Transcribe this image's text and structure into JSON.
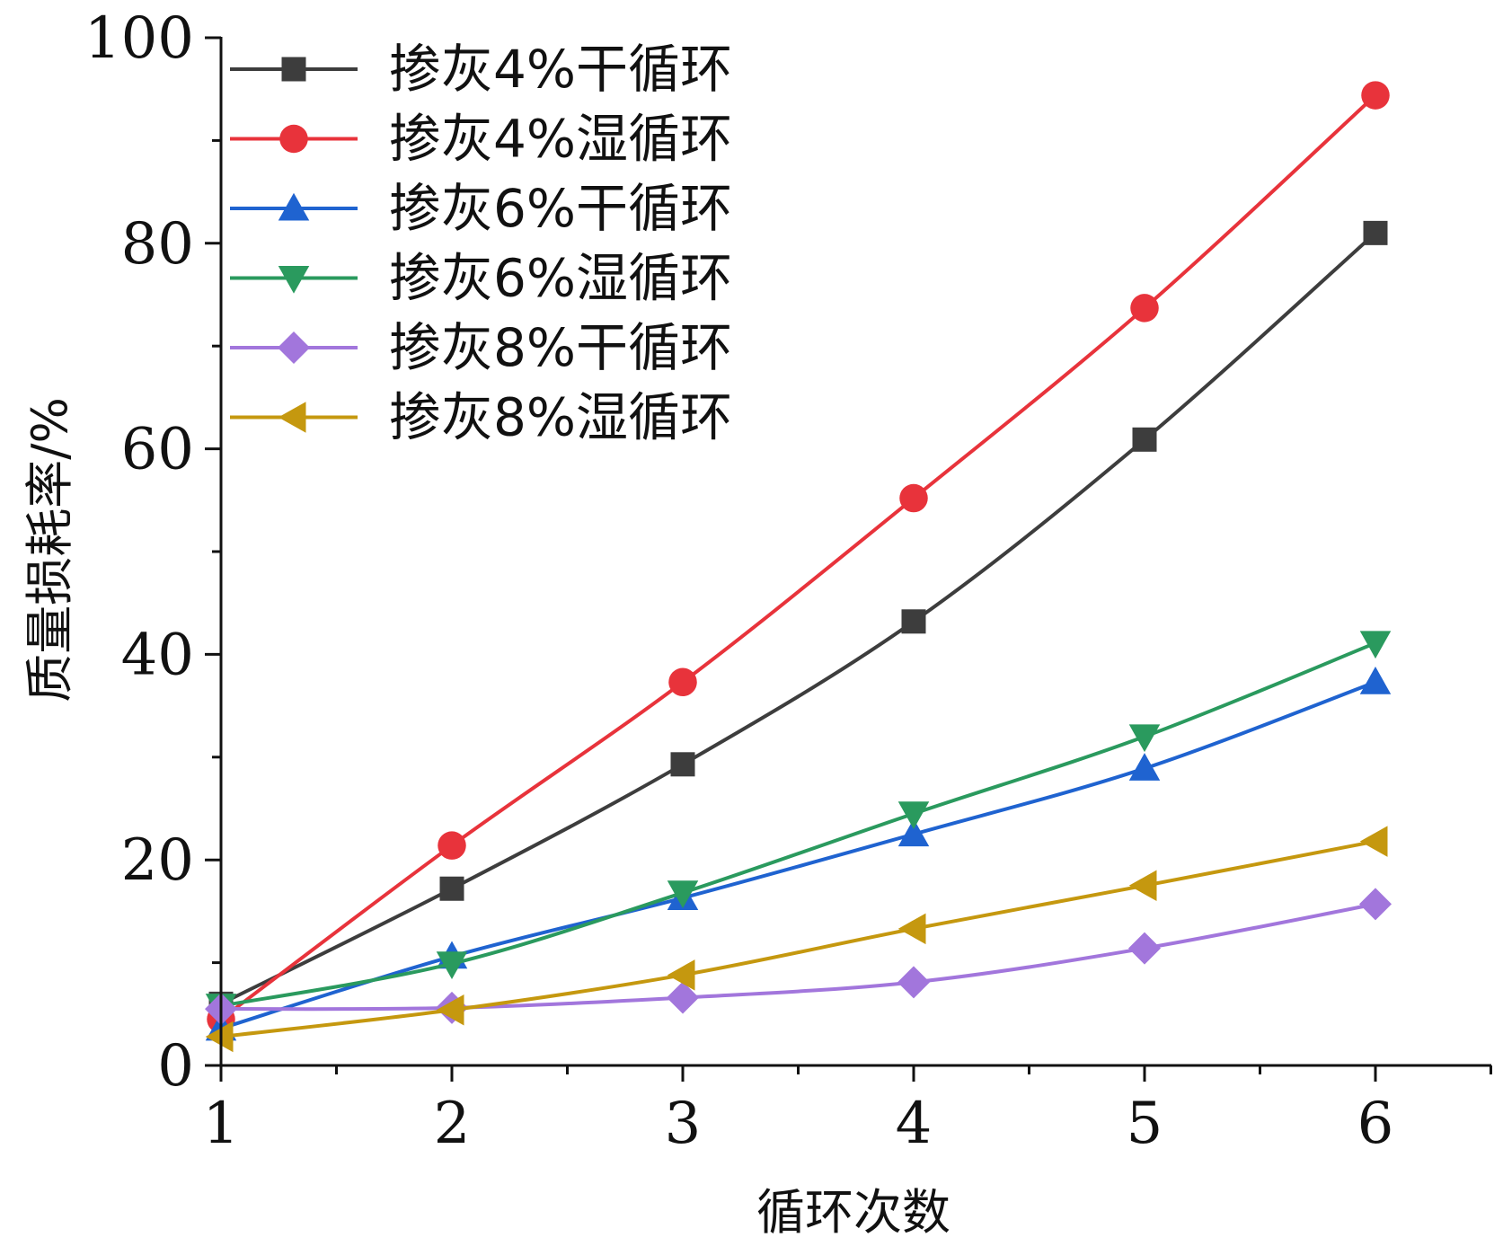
{
  "chart_data": {
    "type": "line",
    "title": "",
    "xlabel": "循环次数",
    "ylabel": "质量损耗率/%",
    "x": [
      1,
      2,
      3,
      4,
      5,
      6
    ],
    "xlim": [
      1,
      6.5
    ],
    "ylim": [
      0,
      100
    ],
    "xticks": [
      "1",
      "2",
      "3",
      "4",
      "5",
      "6"
    ],
    "yticks": [
      "0",
      "20",
      "40",
      "60",
      "80",
      "100"
    ],
    "grid": false,
    "legend_position": "top-left",
    "series": [
      {
        "name": "掺灰4%干循环",
        "color": "#3d3d3d",
        "marker": "square",
        "values": [
          6.0,
          17.2,
          29.3,
          43.2,
          60.9,
          81.0
        ]
      },
      {
        "name": "掺灰4%湿循环",
        "color": "#e8333b",
        "marker": "circle",
        "values": [
          4.5,
          21.4,
          37.3,
          55.2,
          73.7,
          94.4
        ]
      },
      {
        "name": "掺灰6%干循环",
        "color": "#1f63d0",
        "marker": "triangle-up",
        "values": [
          3.6,
          10.6,
          16.3,
          22.5,
          28.9,
          37.3
        ]
      },
      {
        "name": "掺灰6%湿循环",
        "color": "#2a9a5e",
        "marker": "triangle-down",
        "values": [
          5.8,
          9.9,
          16.8,
          24.5,
          32.0,
          41.1
        ]
      },
      {
        "name": "掺灰8%干循环",
        "color": "#a276dc",
        "marker": "diamond",
        "values": [
          5.5,
          5.6,
          6.6,
          8.1,
          11.4,
          15.7
        ]
      },
      {
        "name": "掺灰8%湿循环",
        "color": "#c5980f",
        "marker": "triangle-left",
        "values": [
          2.8,
          5.4,
          8.8,
          13.3,
          17.5,
          21.8
        ]
      }
    ]
  }
}
